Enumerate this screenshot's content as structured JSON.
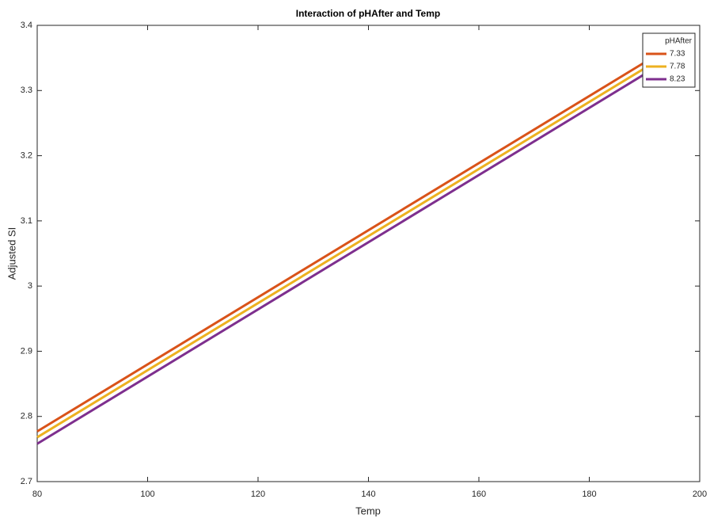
{
  "chart_data": {
    "type": "line",
    "title": "Interaction of pHAfter and Temp",
    "x_label": "Temp",
    "y_label": "Adjusted SI",
    "x": [
      80,
      190
    ],
    "series": [
      {
        "name": "7.33",
        "color": "#d95319",
        "values": [
          2.777,
          3.343
        ]
      },
      {
        "name": "7.78",
        "color": "#edb120",
        "values": [
          2.768,
          3.334
        ]
      },
      {
        "name": "8.23",
        "color": "#7e2f8e",
        "values": [
          2.758,
          3.325
        ]
      }
    ],
    "legend_title": "pHAfter",
    "legend": "upper right",
    "grid": false,
    "xlim": [
      80,
      200
    ],
    "xticks": [
      80,
      100,
      120,
      140,
      160,
      180,
      200
    ],
    "ylim": [
      2.7,
      3.4
    ],
    "yticks": [
      2.7,
      2.8,
      2.9,
      3,
      3.1,
      3.2,
      3.3,
      3.4
    ]
  }
}
